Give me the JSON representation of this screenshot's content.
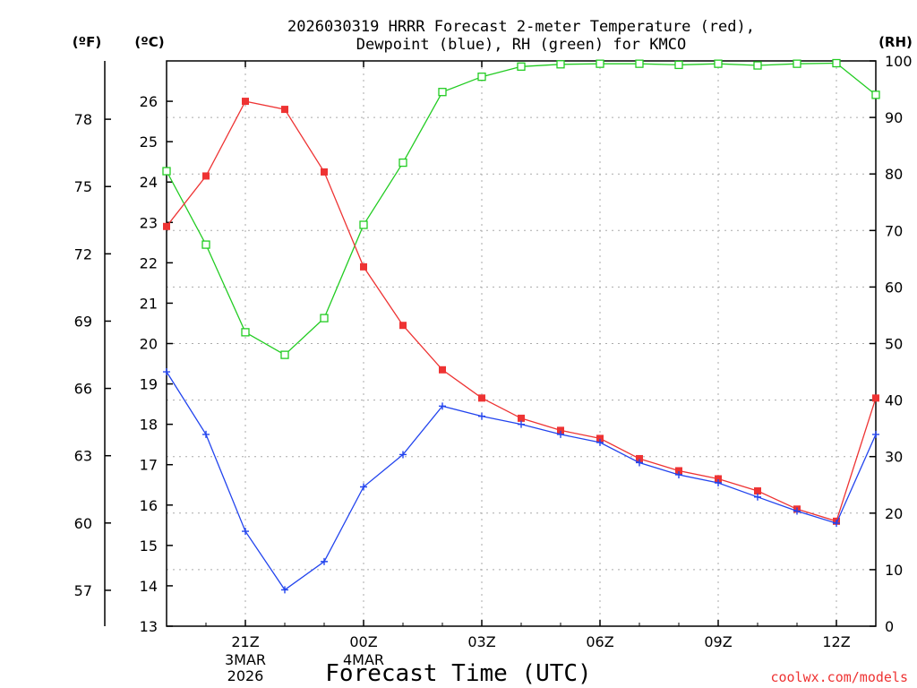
{
  "chart_data": {
    "type": "line",
    "title_line1": "2026030319 HRRR Forecast 2-meter Temperature (red),",
    "title_line2": "Dewpoint (blue), RH (green) for KMCO",
    "unit_f": "(ºF)",
    "unit_c": "(ºC)",
    "unit_rh": "(RH)",
    "xlabel": "Forecast Time (UTC)",
    "credit": "coolwx.com/models",
    "date_labels": [
      {
        "hour": 2,
        "lines": [
          "3MAR",
          "2026"
        ]
      },
      {
        "hour": 5,
        "lines": [
          "4MAR"
        ]
      }
    ],
    "x_hours": [
      0,
      1,
      2,
      3,
      4,
      5,
      6,
      7,
      8,
      9,
      10,
      11,
      12,
      13,
      14,
      15,
      16,
      17,
      18
    ],
    "x_ticks": [
      {
        "hour": 2,
        "label": "21Z"
      },
      {
        "hour": 5,
        "label": "00Z"
      },
      {
        "hour": 8,
        "label": "03Z"
      },
      {
        "hour": 11,
        "label": "06Z"
      },
      {
        "hour": 14,
        "label": "09Z"
      },
      {
        "hour": 17,
        "label": "12Z"
      }
    ],
    "celsius_axis": {
      "min": 13,
      "max": 27,
      "ticks": [
        13,
        14,
        15,
        16,
        17,
        18,
        19,
        20,
        21,
        22,
        23,
        24,
        25,
        26
      ]
    },
    "fahrenheit_ticks": [
      57,
      60,
      63,
      66,
      69,
      72,
      75,
      78
    ],
    "rh_axis": {
      "min": 0,
      "max": 100,
      "ticks": [
        0,
        10,
        20,
        30,
        40,
        50,
        60,
        70,
        80,
        90,
        100
      ]
    },
    "series": [
      {
        "name": "2-meter Temperature",
        "axis": "celsius",
        "color": "#ee3333",
        "marker": "filled-square",
        "values": [
          22.9,
          24.15,
          26.0,
          25.8,
          24.25,
          21.9,
          20.45,
          19.35,
          18.65,
          18.15,
          17.85,
          17.65,
          17.15,
          16.85,
          16.65,
          16.35,
          15.9,
          15.6,
          18.65
        ]
      },
      {
        "name": "Dewpoint",
        "axis": "celsius",
        "color": "#2244ee",
        "marker": "plus",
        "values": [
          19.3,
          17.75,
          15.35,
          13.9,
          14.6,
          16.45,
          17.25,
          18.45,
          18.2,
          18.0,
          17.75,
          17.55,
          17.05,
          16.75,
          16.55,
          16.2,
          15.85,
          15.55,
          17.75
        ]
      },
      {
        "name": "RH",
        "axis": "rh",
        "color": "#22cc22",
        "marker": "open-square",
        "values": [
          80.5,
          67.5,
          52.0,
          48.0,
          54.5,
          71.0,
          82.0,
          94.5,
          97.2,
          99.0,
          99.4,
          99.5,
          99.5,
          99.3,
          99.5,
          99.2,
          99.5,
          99.6,
          94.0
        ]
      }
    ]
  }
}
